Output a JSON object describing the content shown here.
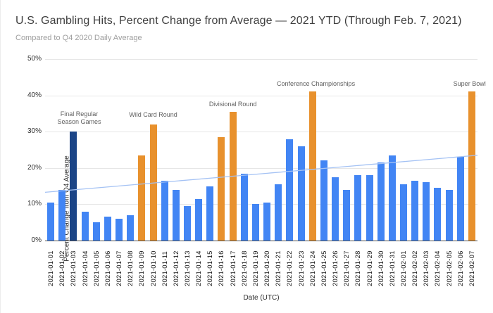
{
  "header": {
    "title": "U.S. Gambling Hits, Percent Change from Average — 2021 YTD (Through Feb. 7, 2021)",
    "subtitle": "Compared to Q4 2020 Daily Average"
  },
  "chart_data": {
    "type": "bar",
    "title": "U.S. Gambling Hits, Percent Change from Average — 2021 YTD (Through Feb. 7, 2021)",
    "subtitle": "Compared to Q4 2020 Daily Average",
    "xlabel": "Date (UTC)",
    "ylabel": "Percent Change from Q4 Average",
    "ylim": [
      0,
      50
    ],
    "yticks": [
      0,
      10,
      20,
      30,
      40,
      50
    ],
    "ytick_suffix": "%",
    "grid": true,
    "legend": "none",
    "categories": [
      "2021-01-01",
      "2021-01-02",
      "2021-01-03",
      "2021-01-04",
      "2021-01-05",
      "2021-01-06",
      "2021-01-07",
      "2021-01-08",
      "2021-01-09",
      "2021-01-10",
      "2021-01-11",
      "2021-01-12",
      "2021-01-13",
      "2021-01-14",
      "2021-01-15",
      "2021-01-16",
      "2021-01-17",
      "2021-01-18",
      "2021-01-19",
      "2021-01-20",
      "2021-01-21",
      "2021-01-22",
      "2021-01-23",
      "2021-01-24",
      "2021-01-25",
      "2021-01-26",
      "2021-01-27",
      "2021-01-28",
      "2021-01-29",
      "2021-01-30",
      "2021-01-31",
      "2021-02-01",
      "2021-02-02",
      "2021-02-03",
      "2021-02-04",
      "2021-02-05",
      "2021-02-06",
      "2021-02-07"
    ],
    "values": [
      10.5,
      14,
      30,
      8,
      5,
      6.5,
      6,
      7,
      23.5,
      32,
      16.5,
      14,
      9.5,
      11.5,
      15,
      28.5,
      35.5,
      18.5,
      10,
      10.5,
      15.5,
      28,
      26,
      41,
      22,
      17.5,
      14,
      18,
      18,
      21.5,
      23.5,
      15.5,
      16.5,
      16,
      14.5,
      14,
      23,
      41
    ],
    "highlight_navy_indices": [
      2
    ],
    "highlight_orange_indices": [
      8,
      9,
      15,
      16,
      23,
      37
    ],
    "colors": {
      "bar_default": "#4285F4",
      "bar_navy": "#1C4587",
      "bar_orange": "#E8912D",
      "trendline": "#A4C2F4",
      "gridline": "#e6e6e6",
      "baseline": "#4a4a4a"
    },
    "trendline": {
      "start_pct": 13.3,
      "end_pct": 23.5
    },
    "annotations": [
      {
        "lines": [
          "Final Regular",
          "Season Games"
        ],
        "anchor_index": 2.5,
        "bottom_pct": 31.5
      },
      {
        "lines": [
          "Wild Card Round"
        ],
        "anchor_index": 9,
        "bottom_pct": 33.5
      },
      {
        "lines": [
          "Divisional Round"
        ],
        "anchor_index": 16,
        "bottom_pct": 36.5
      },
      {
        "lines": [
          "Conference Championships"
        ],
        "anchor_index": 23.3,
        "bottom_pct": 42
      },
      {
        "lines": [
          "Super Bowl"
        ],
        "anchor_index": 36.8,
        "bottom_pct": 42
      }
    ]
  }
}
